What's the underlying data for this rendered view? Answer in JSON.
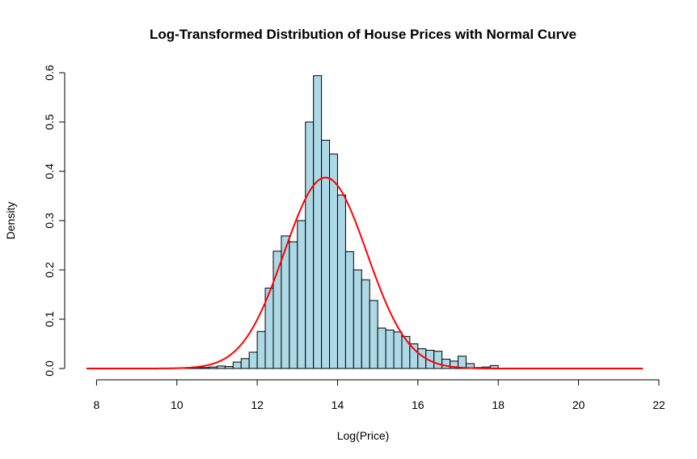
{
  "chart_data": {
    "type": "bar",
    "title": "Log-Transformed Distribution of House Prices with Normal Curve",
    "xlabel": "Log(Price)",
    "ylabel": "Density",
    "xlim": [
      7.75,
      21.6
    ],
    "ylim": [
      0,
      0.6
    ],
    "x_ticks": [
      "8",
      "10",
      "12",
      "14",
      "16",
      "18",
      "20",
      "22"
    ],
    "y_ticks": [
      "0.0",
      "0.1",
      "0.2",
      "0.3",
      "0.4",
      "0.5",
      "0.6"
    ],
    "grid": false,
    "bin_width": 0.2,
    "bars": [
      {
        "x0": 10.2,
        "x1": 10.4,
        "density": 0.001
      },
      {
        "x0": 10.4,
        "x1": 10.6,
        "density": 0.002
      },
      {
        "x0": 10.6,
        "x1": 10.8,
        "density": 0.002
      },
      {
        "x0": 10.8,
        "x1": 11.0,
        "density": 0.003
      },
      {
        "x0": 11.0,
        "x1": 11.2,
        "density": 0.005
      },
      {
        "x0": 11.2,
        "x1": 11.4,
        "density": 0.004
      },
      {
        "x0": 11.4,
        "x1": 11.6,
        "density": 0.013
      },
      {
        "x0": 11.6,
        "x1": 11.8,
        "density": 0.02
      },
      {
        "x0": 11.8,
        "x1": 12.0,
        "density": 0.033
      },
      {
        "x0": 12.0,
        "x1": 12.2,
        "density": 0.075
      },
      {
        "x0": 12.2,
        "x1": 12.4,
        "density": 0.163
      },
      {
        "x0": 12.4,
        "x1": 12.6,
        "density": 0.238
      },
      {
        "x0": 12.6,
        "x1": 12.8,
        "density": 0.269
      },
      {
        "x0": 12.8,
        "x1": 13.0,
        "density": 0.257
      },
      {
        "x0": 13.0,
        "x1": 13.2,
        "density": 0.3
      },
      {
        "x0": 13.2,
        "x1": 13.4,
        "density": 0.5
      },
      {
        "x0": 13.4,
        "x1": 13.6,
        "density": 0.594
      },
      {
        "x0": 13.6,
        "x1": 13.8,
        "density": 0.463
      },
      {
        "x0": 13.8,
        "x1": 14.0,
        "density": 0.435
      },
      {
        "x0": 14.0,
        "x1": 14.2,
        "density": 0.352
      },
      {
        "x0": 14.2,
        "x1": 14.4,
        "density": 0.237
      },
      {
        "x0": 14.4,
        "x1": 14.6,
        "density": 0.2
      },
      {
        "x0": 14.6,
        "x1": 14.8,
        "density": 0.18
      },
      {
        "x0": 14.8,
        "x1": 15.0,
        "density": 0.138
      },
      {
        "x0": 15.0,
        "x1": 15.2,
        "density": 0.082
      },
      {
        "x0": 15.2,
        "x1": 15.4,
        "density": 0.078
      },
      {
        "x0": 15.4,
        "x1": 15.6,
        "density": 0.074
      },
      {
        "x0": 15.6,
        "x1": 15.8,
        "density": 0.065
      },
      {
        "x0": 15.8,
        "x1": 16.0,
        "density": 0.05
      },
      {
        "x0": 16.0,
        "x1": 16.2,
        "density": 0.04
      },
      {
        "x0": 16.2,
        "x1": 16.4,
        "density": 0.037
      },
      {
        "x0": 16.4,
        "x1": 16.6,
        "density": 0.035
      },
      {
        "x0": 16.6,
        "x1": 16.8,
        "density": 0.019
      },
      {
        "x0": 16.8,
        "x1": 17.0,
        "density": 0.015
      },
      {
        "x0": 17.0,
        "x1": 17.2,
        "density": 0.025
      },
      {
        "x0": 17.2,
        "x1": 17.4,
        "density": 0.01
      },
      {
        "x0": 17.4,
        "x1": 17.6,
        "density": 0.002
      },
      {
        "x0": 17.6,
        "x1": 17.8,
        "density": 0.003
      },
      {
        "x0": 17.8,
        "x1": 18.0,
        "density": 0.006
      }
    ],
    "curve": {
      "type": "normal",
      "mean": 13.7,
      "sd": 1.03
    },
    "colors": {
      "bar_fill": "#add8e6",
      "bar_stroke": "#000000",
      "curve": "#ff0000"
    }
  }
}
